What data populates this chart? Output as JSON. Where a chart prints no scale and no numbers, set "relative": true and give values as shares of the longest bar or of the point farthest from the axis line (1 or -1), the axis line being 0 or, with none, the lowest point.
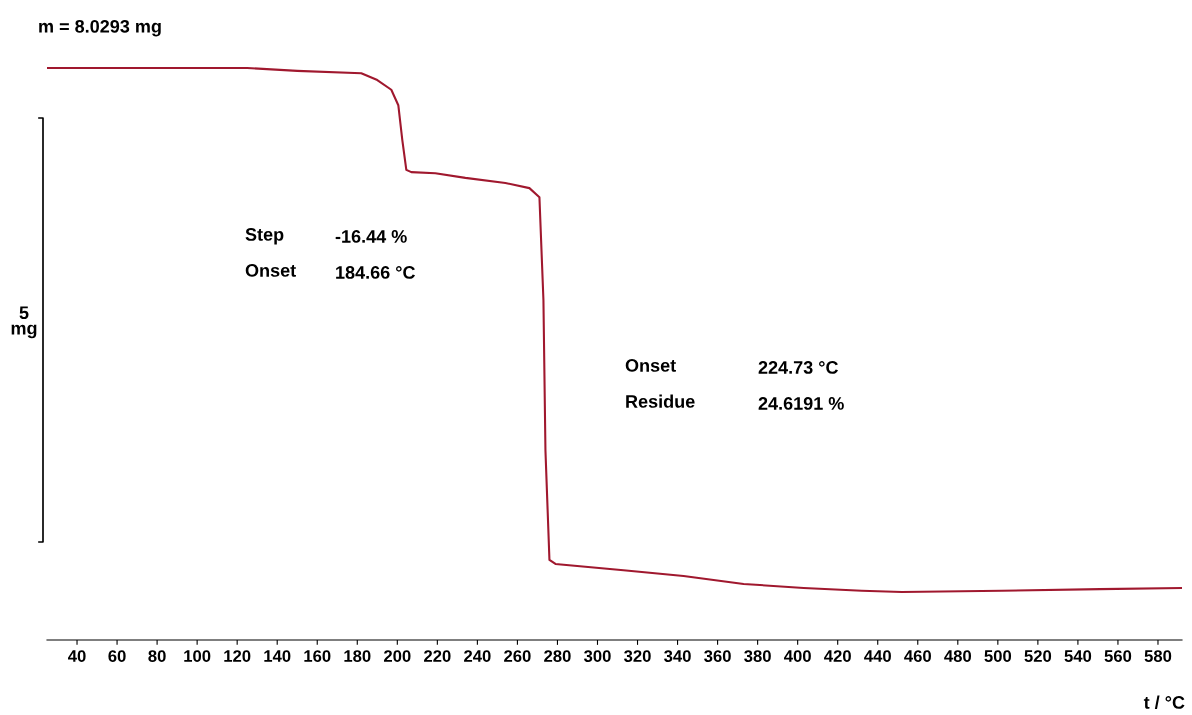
{
  "chart_data": {
    "type": "line",
    "title": "m = 8.0293 mg",
    "xlabel": "t / °C",
    "relative": true,
    "xlim": [
      25,
      592
    ],
    "xticks": [
      40,
      60,
      80,
      100,
      120,
      140,
      160,
      180,
      200,
      220,
      240,
      260,
      280,
      300,
      320,
      340,
      360,
      380,
      400,
      420,
      440,
      460,
      480,
      500,
      520,
      540,
      560,
      580
    ],
    "annotations": [
      "5\nmg",
      "Step",
      "-16.44 %",
      "Onset",
      "184.66 °C",
      "Onset",
      "224.73 °C",
      "Residue",
      "24.6191 %"
    ],
    "grid": false,
    "legend": false,
    "series": [
      {
        "color": "#a0182e",
        "x": [
          25,
          125,
          150,
          182,
          190,
          197,
          200.5,
          202.5,
          204.5,
          207,
          219,
          234,
          254,
          266,
          271,
          273,
          274,
          276,
          279,
          313,
          343,
          373,
          403,
          432,
          452,
          502,
          551,
          592
        ],
        "values": [
          1.0,
          1.0,
          0.995,
          0.991,
          0.979,
          0.962,
          0.935,
          0.874,
          0.822,
          0.818,
          0.816,
          0.808,
          0.799,
          0.79,
          0.774,
          0.594,
          0.332,
          0.14,
          0.133,
          0.122,
          0.112,
          0.098,
          0.091,
          0.086,
          0.084,
          0.086,
          0.089,
          0.091
        ]
      }
    ]
  }
}
